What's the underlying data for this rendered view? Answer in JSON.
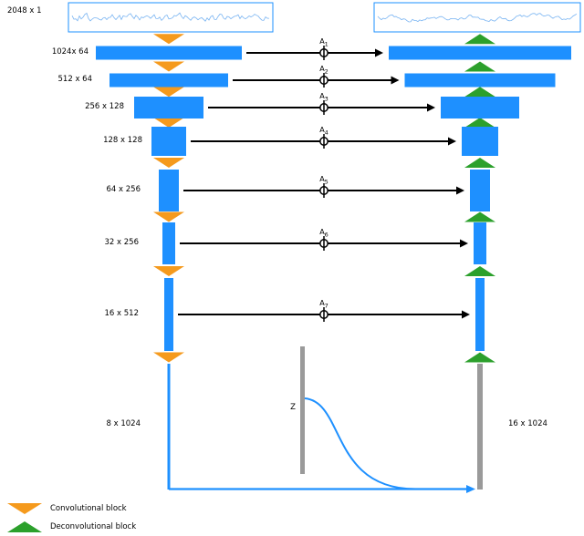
{
  "colors": {
    "bar_blue": "#1e90ff",
    "conv_orange": "#f59a1d",
    "deconv_green": "#2ca02c",
    "gray_bar": "#9a9a9a",
    "arrow_black": "#000000",
    "box_border": "#1e90ff",
    "waveform_blue": "#79b4f2",
    "flow_blue": "#1e90ff"
  },
  "input": {
    "label": "2048 x 1"
  },
  "encoder_rows": [
    {
      "label": "1024x 64"
    },
    {
      "label": "512 x 64"
    },
    {
      "label": "256 x 128"
    },
    {
      "label": "128 x 128"
    },
    {
      "label": "64 x 256"
    },
    {
      "label": "32 x 256"
    },
    {
      "label": "16 x 512"
    }
  ],
  "bottleneck": {
    "encoder_label": "8 x 1024",
    "latent_label": "Z",
    "decoder_label": "16 x 1024"
  },
  "skips": [
    {
      "name": "A",
      "index": "1"
    },
    {
      "name": "A",
      "index": "2"
    },
    {
      "name": "A",
      "index": "3"
    },
    {
      "name": "A",
      "index": "4"
    },
    {
      "name": "A",
      "index": "5"
    },
    {
      "name": "A",
      "index": "6"
    },
    {
      "name": "A",
      "index": "7"
    }
  ],
  "legend": [
    {
      "label": "Convolutional block",
      "type": "conv"
    },
    {
      "label": "Deconvolutional block",
      "type": "deconv"
    }
  ]
}
